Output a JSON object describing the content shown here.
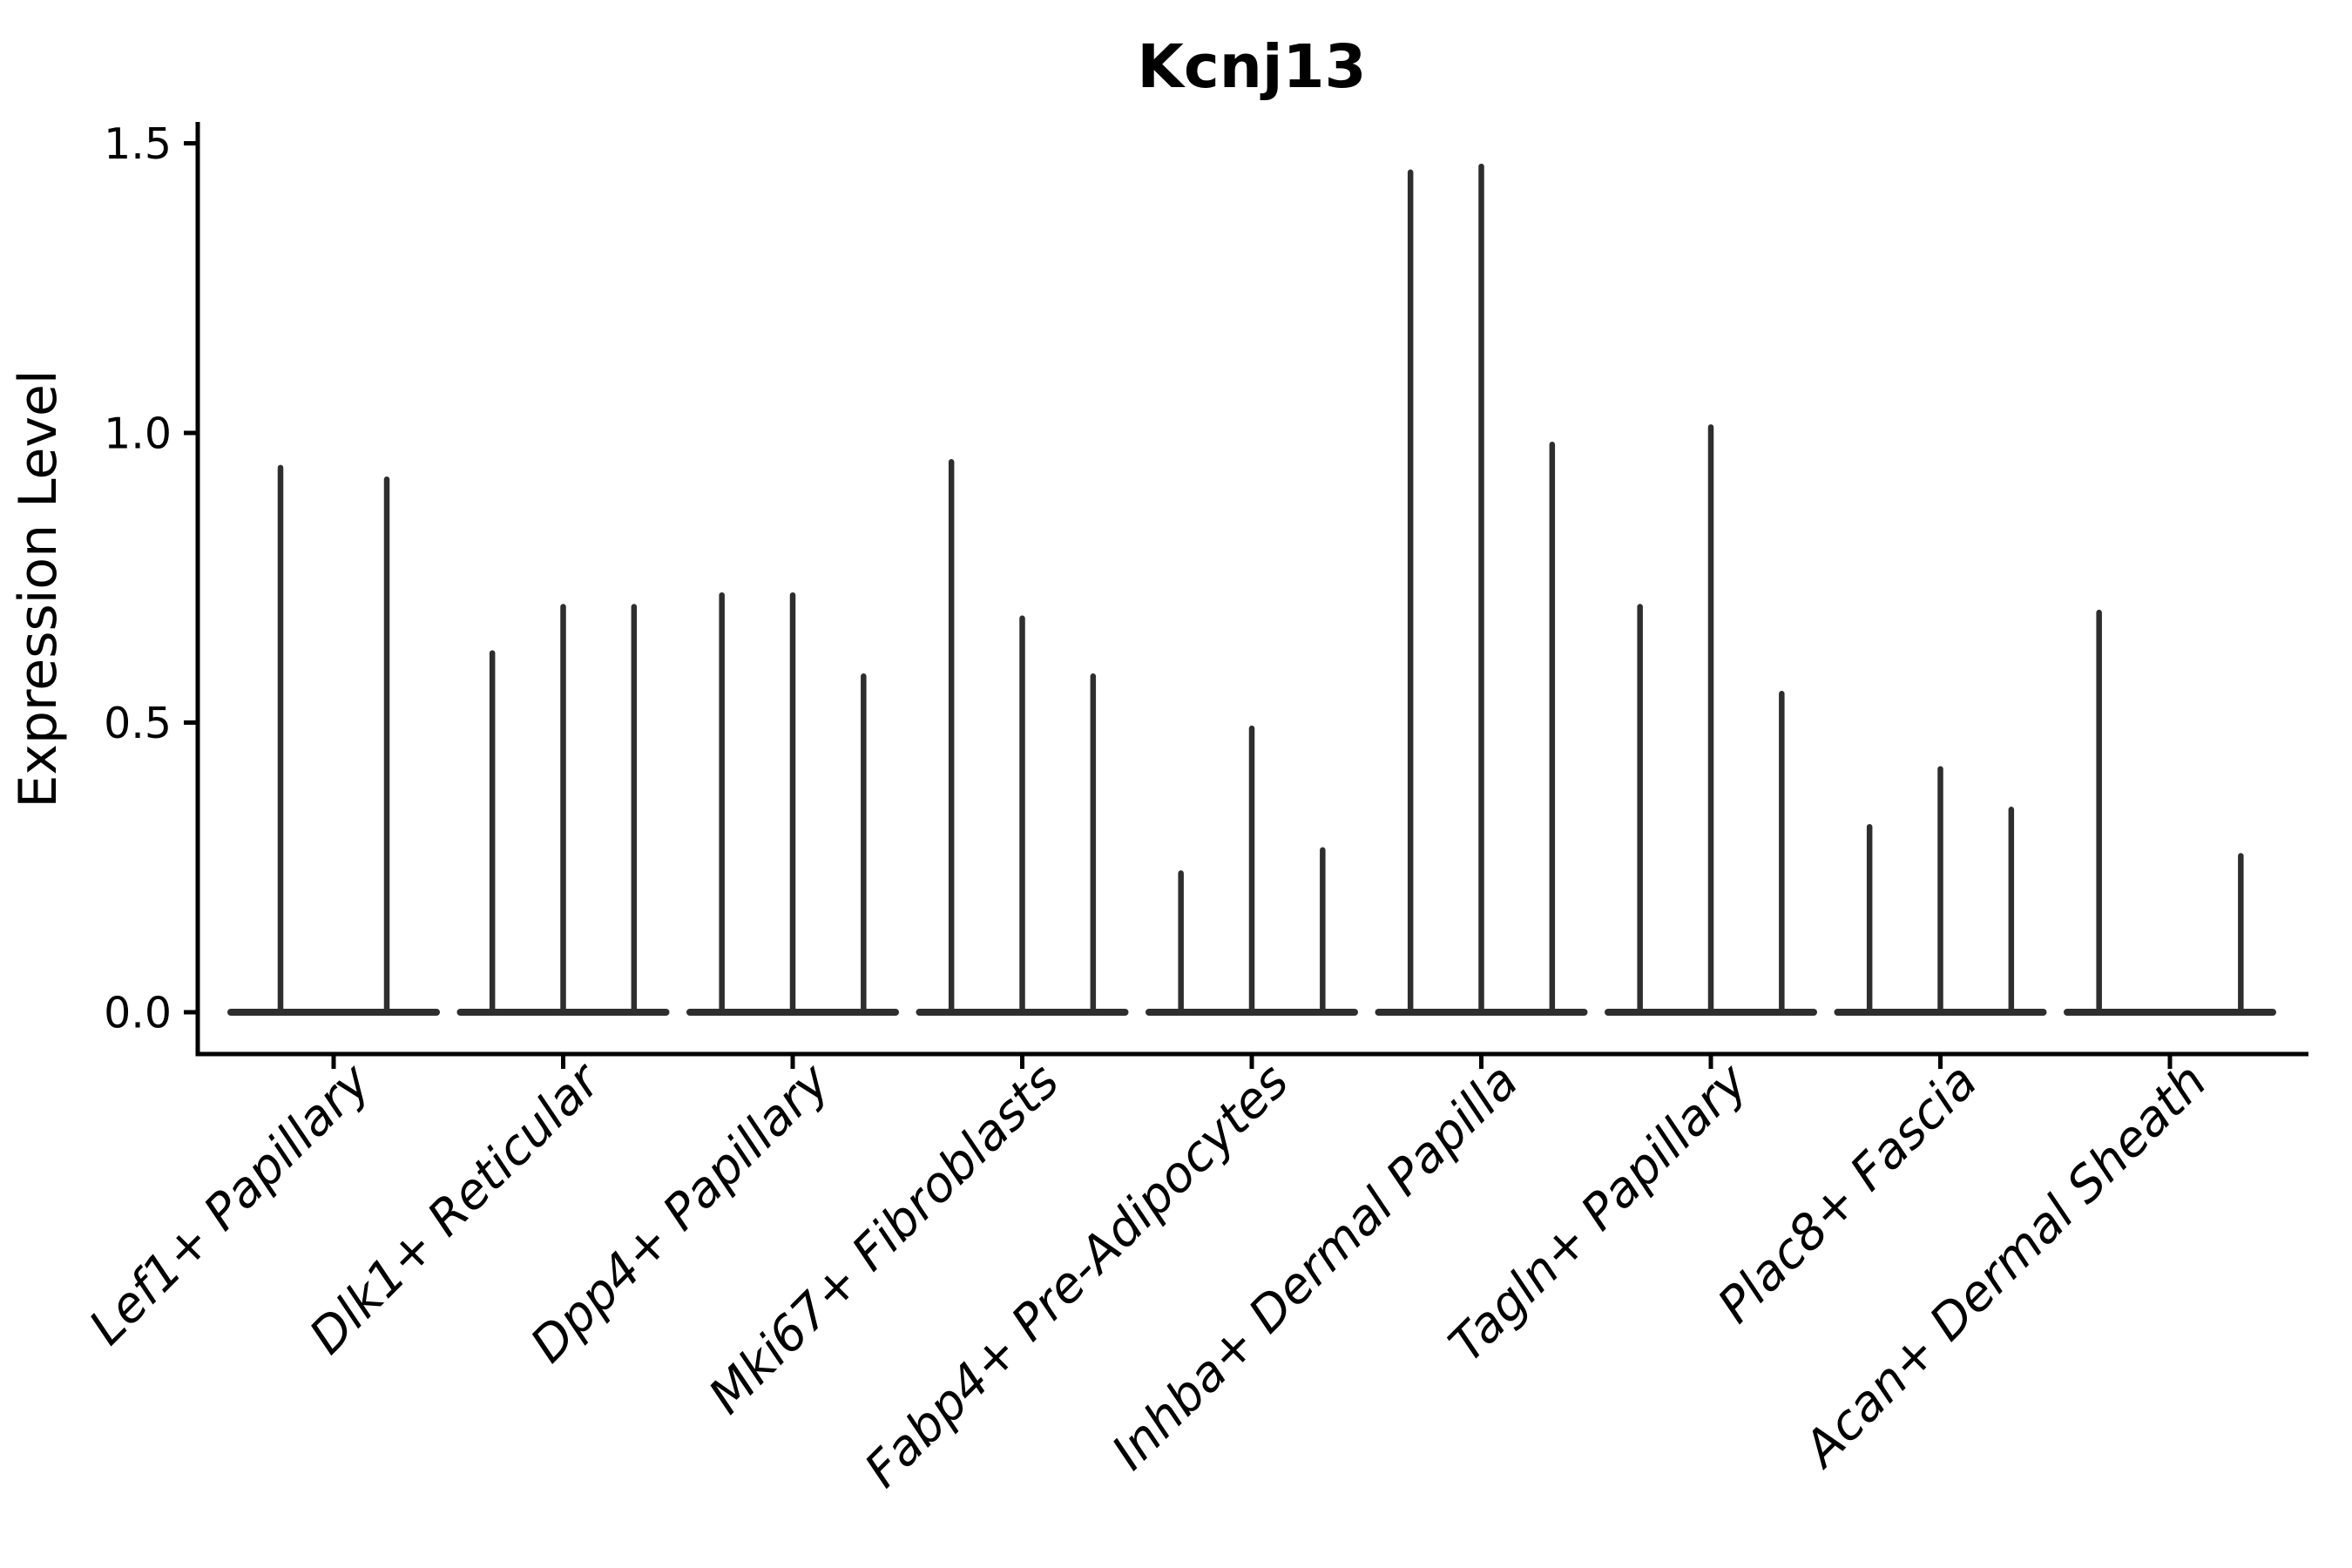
{
  "figure": {
    "background_color": "#ffffff",
    "text_color": "#000000",
    "axis_color": "#000000",
    "violin_color": "#2e2e2e"
  },
  "chart_data": {
    "type": "violin",
    "title": "Kcnj13",
    "ylabel": "Expression Level",
    "xlabel": "",
    "grid": false,
    "legend": null,
    "ylim": [
      -0.07,
      1.54
    ],
    "yticks": [
      {
        "label": "0.0",
        "value": 0.0
      },
      {
        "label": "0.5",
        "value": 0.5
      },
      {
        "label": "1.0",
        "value": 1.0
      },
      {
        "label": "1.5",
        "value": 1.5
      }
    ],
    "categories": [
      "Lef1+ Papillary",
      "Dlk1+ Reticular",
      "Dpp4+ Papillary",
      "Mki67+ Fibroblasts",
      "Fabp4+ Pre-Adipocytes",
      "Inhba+ Dermal Papilla",
      "Tagln+ Papillary",
      "Plac8+ Fascia",
      "Acan+ Dermal Sheath"
    ],
    "series": [
      {
        "category": "Lef1+ Papillary",
        "violin_peaks": [
          0.94,
          0.92
        ]
      },
      {
        "category": "Dlk1+ Reticular",
        "violin_peaks": [
          0.62,
          0.7,
          0.7
        ]
      },
      {
        "category": "Dpp4+ Papillary",
        "violin_peaks": [
          0.72,
          0.72,
          0.58
        ]
      },
      {
        "category": "Mki67+ Fibroblasts",
        "violin_peaks": [
          0.95,
          0.68,
          0.58
        ]
      },
      {
        "category": "Fabp4+ Pre-Adipocytes",
        "violin_peaks": [
          0.24,
          0.49,
          0.28
        ]
      },
      {
        "category": "Inhba+ Dermal Papilla",
        "violin_peaks": [
          1.45,
          1.46,
          0.98
        ]
      },
      {
        "category": "Tagln+ Papillary",
        "violin_peaks": [
          0.7,
          1.01,
          0.55
        ]
      },
      {
        "category": "Plac8+ Fascia",
        "violin_peaks": [
          0.32,
          0.42,
          0.35
        ]
      },
      {
        "category": "Acan+ Dermal Sheath",
        "violin_peaks": [
          0.69,
          0.0,
          0.27
        ]
      }
    ]
  }
}
